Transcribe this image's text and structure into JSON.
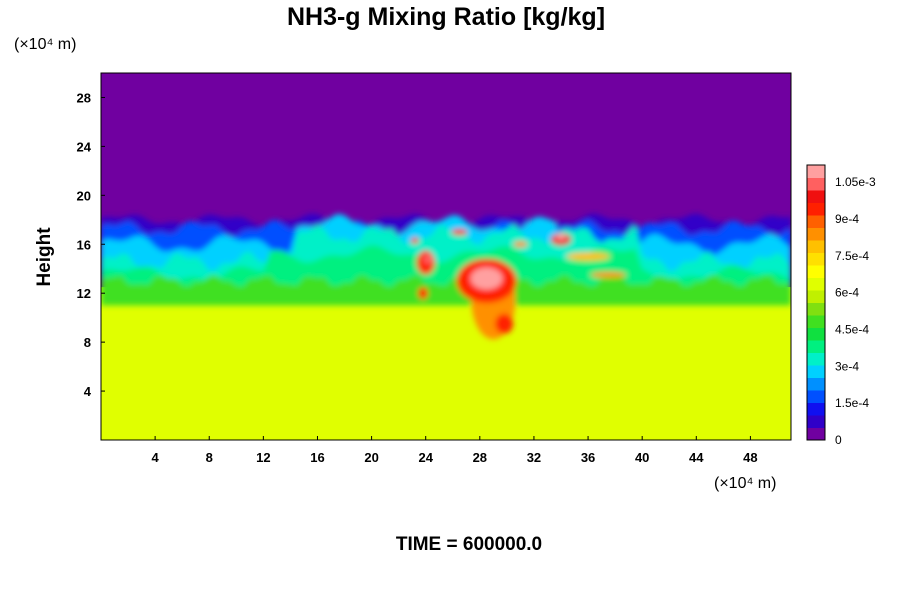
{
  "chart_data": {
    "type": "heatmap",
    "title": "NH3-g Mixing Ratio [kg/kg]",
    "ylabel": "Height",
    "x_unit": "(×10⁴ m)",
    "y_unit": "(×10⁴ m)",
    "xlim": [
      0,
      51
    ],
    "ylim": [
      0,
      30
    ],
    "x_ticks": [
      "4",
      "8",
      "12",
      "16",
      "20",
      "24",
      "28",
      "32",
      "36",
      "40",
      "44",
      "48"
    ],
    "y_ticks": [
      "4",
      "8",
      "12",
      "16",
      "20",
      "24",
      "28"
    ],
    "footer": "TIME = 600000.0",
    "colorbar": {
      "min": 0,
      "max": 0.00112,
      "tick_labels": [
        "0",
        "1.5e-4",
        "3e-4",
        "4.5e-4",
        "6e-4",
        "7.5e-4",
        "9e-4",
        "1.05e-3"
      ],
      "tick_values": [
        0,
        0.00015,
        0.0003,
        0.00045,
        0.0006,
        0.00075,
        0.0009,
        0.00105
      ],
      "colors": [
        "#7000a0",
        "#3000c8",
        "#1010f0",
        "#0050ff",
        "#0090ff",
        "#00d0ff",
        "#00f0c8",
        "#00f080",
        "#10e040",
        "#40e020",
        "#80e010",
        "#c0f000",
        "#e0ff00",
        "#ffff00",
        "#ffe000",
        "#ffc000",
        "#ff9000",
        "#ff6000",
        "#ff2000",
        "#f01010",
        "#ff6060",
        "#ffa0a0"
      ]
    },
    "regions": [
      {
        "name": "upper",
        "y_range": [
          18,
          30
        ],
        "value": 0.0
      },
      {
        "name": "cloud-top transition",
        "y_range": [
          12.5,
          18
        ],
        "value_range": [
          5e-05,
          0.0006
        ]
      },
      {
        "name": "lower",
        "y_range": [
          0,
          12.5
        ],
        "value": 0.00076
      },
      {
        "name": "central high-value plume",
        "x_range": [
          22,
          35
        ],
        "y_range": [
          8,
          18
        ],
        "value_range": [
          0.0009,
          0.0011
        ]
      }
    ]
  }
}
